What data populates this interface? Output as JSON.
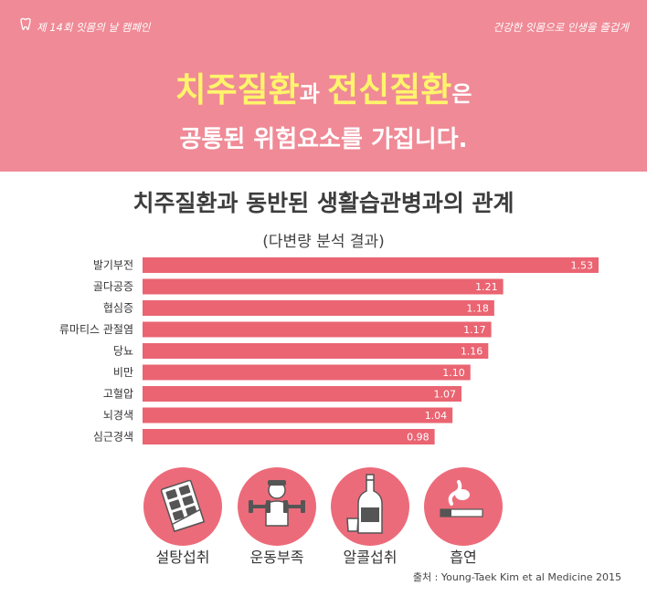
{
  "header": {
    "campaign": "제 14회 잇몸의 날 캠페인",
    "slogan": "건강한 잇몸으로 인생을 즐겁게"
  },
  "headline": {
    "part1": "치주질환",
    "part2": "과 ",
    "part3": "전신질환",
    "part4": "은",
    "line2": "공통된 위험요소를 가집니다."
  },
  "chart_data": {
    "type": "bar",
    "orientation": "horizontal",
    "title": "치주질환과 동반된 생활습관병과의 관계",
    "subtitle": "(다변량 분석 결과)",
    "categories": [
      "발기부전",
      "골다공증",
      "협심증",
      "류마티스 관절염",
      "당뇨",
      "비만",
      "고혈압",
      "뇌경색",
      "심근경색"
    ],
    "values": [
      1.53,
      1.21,
      1.18,
      1.17,
      1.16,
      1.1,
      1.07,
      1.04,
      0.98
    ],
    "value_labels": [
      "1.53",
      "1.21",
      "1.18",
      "1.17",
      "1.16",
      "1.10",
      "1.07",
      "1.04",
      "0.98"
    ],
    "bar_color": "#ea6472",
    "label_color": "#ffffff"
  },
  "risk_factors": [
    {
      "label": "설탕섭취",
      "icon": "chocolate-bar-icon"
    },
    {
      "label": "운동부족",
      "icon": "dumbbell-person-icon"
    },
    {
      "label": "알콜섭취",
      "icon": "alcohol-bottle-icon"
    },
    {
      "label": "흡연",
      "icon": "cigarette-icon"
    }
  ],
  "source": "출처 : Young-Taek Kim et al Medicine 2015",
  "colors": {
    "hero_background": "#ef8a96",
    "highlight_yellow": "#fff46b",
    "icon_circle": "#ec6b7a"
  }
}
